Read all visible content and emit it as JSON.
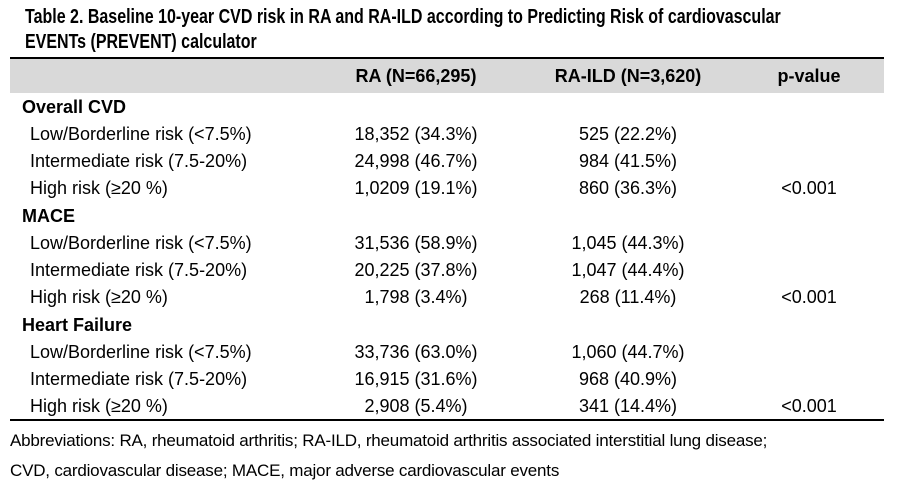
{
  "title": {
    "full": "Table 2. Baseline 10-year CVD risk in RA and RA-ILD according to Predicting Risk of cardiovascular EVENTs (PREVENT) calculator",
    "lines": [
      "Table 2. Baseline 10-year CVD risk in RA and RA-ILD according to Predicting Risk of cardiovascular",
      "EVENTs (PREVENT) calculator"
    ]
  },
  "table": {
    "header": {
      "stub": "",
      "ra": "RA (N=66,295)",
      "ra_ild": "RA-ILD (N=3,620)",
      "p": "p-value"
    },
    "sections": [
      {
        "name": "Overall CVD",
        "rows": [
          {
            "label": "Low/Borderline risk (<7.5%)",
            "ra": "18,352 (34.3%)",
            "ra_ild": "525 (22.2%)",
            "p": ""
          },
          {
            "label": "Intermediate risk (7.5-20%)",
            "ra": "24,998 (46.7%)",
            "ra_ild": "984 (41.5%)",
            "p": ""
          },
          {
            "label": "High risk (≥20 %)",
            "ra": "1,0209 (19.1%)",
            "ra_ild": "860 (36.3%)",
            "p": "<0.001"
          }
        ]
      },
      {
        "name": "MACE",
        "rows": [
          {
            "label": "Low/Borderline risk (<7.5%)",
            "ra": "31,536 (58.9%)",
            "ra_ild": "1,045 (44.3%)",
            "p": ""
          },
          {
            "label": "Intermediate risk (7.5-20%)",
            "ra": "20,225 (37.8%)",
            "ra_ild": "1,047 (44.4%)",
            "p": ""
          },
          {
            "label": "High risk (≥20 %)",
            "ra": "1,798 (3.4%)",
            "ra_ild": "268 (11.4%)",
            "p": "<0.001"
          }
        ]
      },
      {
        "name": "Heart Failure",
        "rows": [
          {
            "label": "Low/Borderline risk (<7.5%)",
            "ra": "33,736 (63.0%)",
            "ra_ild": "1,060 (44.7%)",
            "p": ""
          },
          {
            "label": "Intermediate risk (7.5-20%)",
            "ra": "16,915 (31.6%)",
            "ra_ild": "968 (40.9%)",
            "p": ""
          },
          {
            "label": "High risk (≥20 %)",
            "ra": "2,908 (5.4%)",
            "ra_ild": "341 (14.4%)",
            "p": "<0.001"
          }
        ]
      }
    ]
  },
  "footnote": {
    "full": "Abbreviations: RA, rheumatoid arthritis; RA-ILD, rheumatoid arthritis associated interstitial lung disease; CVD, cardiovascular disease; MACE, major adverse cardiovascular events",
    "lines": [
      "Abbreviations: RA, rheumatoid arthritis; RA-ILD, rheumatoid arthritis associated interstitial lung disease;",
      "CVD, cardiovascular disease; MACE, major adverse cardiovascular events"
    ]
  },
  "colors": {
    "header_bg": "#d9d9d9",
    "rule": "#000000",
    "text": "#000000",
    "background": "#ffffff"
  }
}
